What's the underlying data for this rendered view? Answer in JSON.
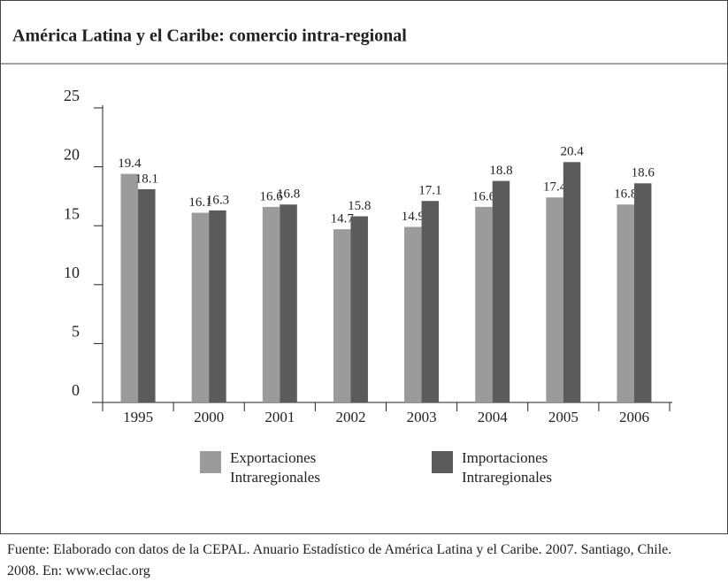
{
  "chart_data": {
    "type": "bar",
    "title": "América Latina y el Caribe: comercio intra-regional",
    "categories": [
      "1995",
      "2000",
      "2001",
      "2002",
      "2003",
      "2004",
      "2005",
      "2006"
    ],
    "series": [
      {
        "name": "Exportaciones Intraregionales",
        "color": "#9b9b9b",
        "values": [
          19.4,
          16.1,
          16.6,
          14.7,
          14.9,
          16.6,
          17.4,
          16.8
        ]
      },
      {
        "name": "Importaciones Intraregionales",
        "color": "#5b5b5b",
        "values": [
          18.1,
          16.3,
          16.8,
          15.8,
          17.1,
          18.8,
          20.4,
          18.6
        ]
      }
    ],
    "ylim": [
      0,
      25
    ],
    "yticks": [
      0,
      5,
      10,
      15,
      20,
      25
    ],
    "source": "Fuente: Elaborado con datos de la CEPAL. Anuario Estadístico de América Latina y el Caribe. 2007. Santiago, Chile. 2008. En: www.eclac.org"
  }
}
